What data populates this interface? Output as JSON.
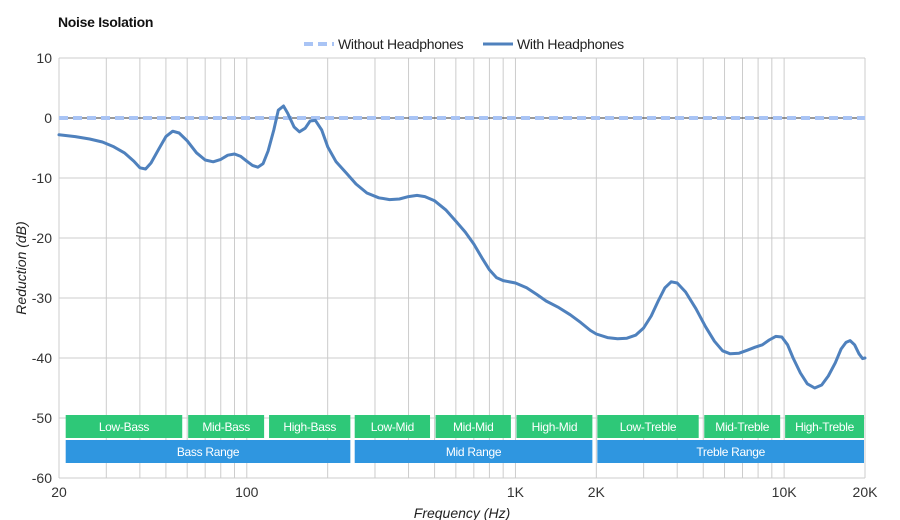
{
  "chart_data": {
    "type": "line",
    "title": "Noise Isolation",
    "xlabel": "Frequency (Hz)",
    "ylabel": "Reduction (dB)",
    "x_scale": "log",
    "xlim": [
      20,
      20000
    ],
    "ylim": [
      -60,
      10
    ],
    "grid": true,
    "legend_position": "top-center",
    "y_ticks": [
      10,
      0,
      -10,
      -20,
      -30,
      -40,
      -50,
      -60
    ],
    "x_ticks": [
      {
        "value": 20,
        "label": "20"
      },
      {
        "value": 100,
        "label": "100"
      },
      {
        "value": 1000,
        "label": "1K"
      },
      {
        "value": 2000,
        "label": "2K"
      },
      {
        "value": 10000,
        "label": "10K"
      },
      {
        "value": 20000,
        "label": "20K"
      }
    ],
    "series": [
      {
        "name": "Without Headphones",
        "color": "#a9c4f5",
        "style": "dashed",
        "points": [
          [
            20,
            0
          ],
          [
            20000,
            0
          ]
        ]
      },
      {
        "name": "With Headphones",
        "color": "#4f81bd",
        "style": "solid",
        "points": [
          [
            20,
            -2.8
          ],
          [
            23,
            -3.1
          ],
          [
            26,
            -3.5
          ],
          [
            29,
            -4.0
          ],
          [
            32,
            -4.8
          ],
          [
            35,
            -5.8
          ],
          [
            38,
            -7.2
          ],
          [
            40,
            -8.3
          ],
          [
            42,
            -8.5
          ],
          [
            44,
            -7.5
          ],
          [
            47,
            -5.2
          ],
          [
            50,
            -3.1
          ],
          [
            53,
            -2.2
          ],
          [
            56,
            -2.5
          ],
          [
            60,
            -3.8
          ],
          [
            65,
            -5.8
          ],
          [
            70,
            -7.0
          ],
          [
            75,
            -7.3
          ],
          [
            80,
            -6.9
          ],
          [
            85,
            -6.2
          ],
          [
            90,
            -6.0
          ],
          [
            95,
            -6.4
          ],
          [
            100,
            -7.2
          ],
          [
            105,
            -7.9
          ],
          [
            110,
            -8.2
          ],
          [
            115,
            -7.6
          ],
          [
            120,
            -5.5
          ],
          [
            126,
            -2.0
          ],
          [
            131,
            1.3
          ],
          [
            137,
            2.0
          ],
          [
            142,
            0.8
          ],
          [
            150,
            -1.5
          ],
          [
            157,
            -2.3
          ],
          [
            165,
            -1.7
          ],
          [
            172,
            -0.5
          ],
          [
            180,
            -0.4
          ],
          [
            190,
            -2.0
          ],
          [
            200,
            -4.8
          ],
          [
            215,
            -7.3
          ],
          [
            235,
            -9.2
          ],
          [
            255,
            -11.0
          ],
          [
            280,
            -12.5
          ],
          [
            310,
            -13.3
          ],
          [
            340,
            -13.6
          ],
          [
            370,
            -13.5
          ],
          [
            400,
            -13.1
          ],
          [
            430,
            -12.9
          ],
          [
            460,
            -13.1
          ],
          [
            500,
            -13.8
          ],
          [
            550,
            -15.3
          ],
          [
            600,
            -17.2
          ],
          [
            650,
            -19.0
          ],
          [
            700,
            -21.0
          ],
          [
            750,
            -23.3
          ],
          [
            800,
            -25.3
          ],
          [
            850,
            -26.6
          ],
          [
            900,
            -27.1
          ],
          [
            1000,
            -27.5
          ],
          [
            1100,
            -28.3
          ],
          [
            1200,
            -29.4
          ],
          [
            1300,
            -30.5
          ],
          [
            1450,
            -31.6
          ],
          [
            1600,
            -32.8
          ],
          [
            1750,
            -34.1
          ],
          [
            1900,
            -35.4
          ],
          [
            2000,
            -36.0
          ],
          [
            2200,
            -36.6
          ],
          [
            2400,
            -36.8
          ],
          [
            2600,
            -36.7
          ],
          [
            2800,
            -36.2
          ],
          [
            3000,
            -35.0
          ],
          [
            3200,
            -33.0
          ],
          [
            3400,
            -30.5
          ],
          [
            3600,
            -28.3
          ],
          [
            3800,
            -27.3
          ],
          [
            4000,
            -27.5
          ],
          [
            4300,
            -29.0
          ],
          [
            4700,
            -31.8
          ],
          [
            5100,
            -34.8
          ],
          [
            5500,
            -37.2
          ],
          [
            5900,
            -38.8
          ],
          [
            6300,
            -39.3
          ],
          [
            6800,
            -39.2
          ],
          [
            7300,
            -38.7
          ],
          [
            7800,
            -38.2
          ],
          [
            8300,
            -37.8
          ],
          [
            8800,
            -37.0
          ],
          [
            9300,
            -36.4
          ],
          [
            9800,
            -36.5
          ],
          [
            10300,
            -37.8
          ],
          [
            10800,
            -40.0
          ],
          [
            11500,
            -42.5
          ],
          [
            12200,
            -44.3
          ],
          [
            13000,
            -45.0
          ],
          [
            13800,
            -44.5
          ],
          [
            14600,
            -43.0
          ],
          [
            15500,
            -40.8
          ],
          [
            16300,
            -38.5
          ],
          [
            17000,
            -37.4
          ],
          [
            17600,
            -37.1
          ],
          [
            18300,
            -37.8
          ],
          [
            19000,
            -39.3
          ],
          [
            19600,
            -40.1
          ],
          [
            20000,
            -40.0
          ]
        ]
      }
    ],
    "bands": [
      {
        "label": "Low-Bass",
        "start": 21,
        "end": 58,
        "row": 1,
        "color": "#2ec878"
      },
      {
        "label": "Mid-Bass",
        "start": 60,
        "end": 117,
        "row": 1,
        "color": "#2ec878"
      },
      {
        "label": "High-Bass",
        "start": 120,
        "end": 245,
        "row": 1,
        "color": "#2ec878"
      },
      {
        "label": "Low-Mid",
        "start": 250,
        "end": 485,
        "row": 1,
        "color": "#2ec878"
      },
      {
        "label": "Mid-Mid",
        "start": 500,
        "end": 970,
        "row": 1,
        "color": "#2ec878"
      },
      {
        "label": "High-Mid",
        "start": 1000,
        "end": 1950,
        "row": 1,
        "color": "#2ec878"
      },
      {
        "label": "Low-Treble",
        "start": 2000,
        "end": 4850,
        "row": 1,
        "color": "#2ec878"
      },
      {
        "label": "Mid-Treble",
        "start": 5000,
        "end": 9750,
        "row": 1,
        "color": "#2ec878"
      },
      {
        "label": "High-Treble",
        "start": 10000,
        "end": 20000,
        "row": 1,
        "color": "#2ec878"
      },
      {
        "label": "Bass Range",
        "start": 21,
        "end": 245,
        "row": 2,
        "color": "#2f96e0"
      },
      {
        "label": "Mid Range",
        "start": 250,
        "end": 1950,
        "row": 2,
        "color": "#2f96e0"
      },
      {
        "label": "Treble Range",
        "start": 2000,
        "end": 20000,
        "row": 2,
        "color": "#2f96e0"
      }
    ]
  }
}
